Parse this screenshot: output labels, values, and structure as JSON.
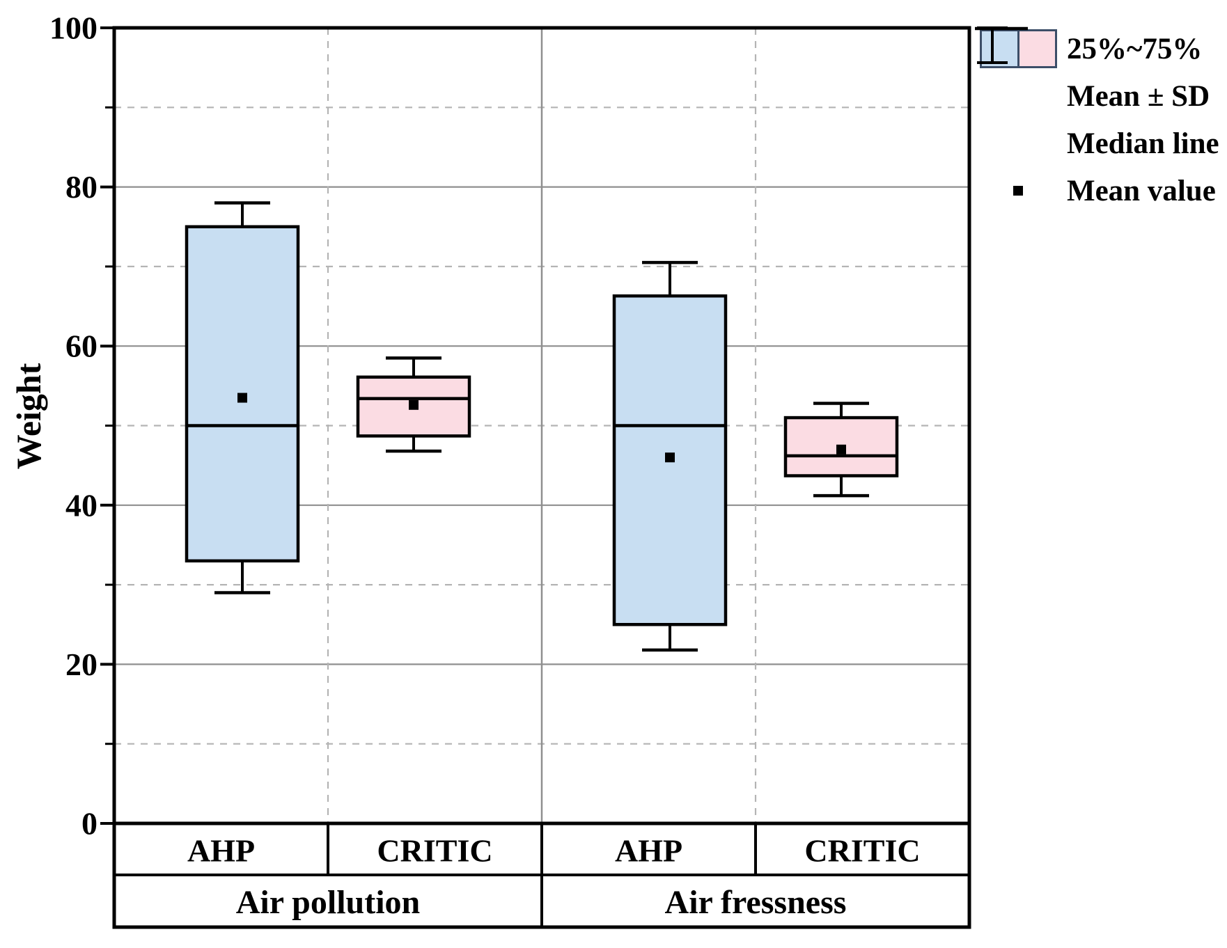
{
  "chart_data": {
    "type": "box",
    "ylabel": "Weight",
    "ylim": [
      0,
      100
    ],
    "ytick_major": [
      0,
      20,
      40,
      60,
      80,
      100
    ],
    "ytick_minor": [
      10,
      30,
      50,
      70,
      90
    ],
    "grid": "major-solid-minor-dashed",
    "legend_position": "top-right-outside",
    "colors": {
      "box_blue": "#c8def2",
      "box_pink": "#fbdce3",
      "swatch_border": "#3c4e68",
      "grid_major": "#8f8f8f",
      "grid_minor": "#b4b4b4",
      "line": "#000000"
    },
    "groups": [
      {
        "label": "Air pollution",
        "methods": [
          "AHP",
          "CRITIC"
        ]
      },
      {
        "label": "Air fressness",
        "methods": [
          "AHP",
          "CRITIC"
        ]
      }
    ],
    "series": [
      {
        "group": "Air pollution",
        "method": "AHP",
        "fill": "blue",
        "whisker_low": 29,
        "q1": 33,
        "median": 50,
        "mean": 53.5,
        "q3": 75,
        "whisker_high": 78
      },
      {
        "group": "Air pollution",
        "method": "CRITIC",
        "fill": "pink",
        "whisker_low": 46.8,
        "q1": 48.7,
        "median": 53.4,
        "mean": 52.6,
        "q3": 56.1,
        "whisker_high": 58.5
      },
      {
        "group": "Air fressness",
        "method": "AHP",
        "fill": "blue",
        "whisker_low": 21.8,
        "q1": 25,
        "median": 50,
        "mean": 46,
        "q3": 66.3,
        "whisker_high": 70.5
      },
      {
        "group": "Air fressness",
        "method": "CRITIC",
        "fill": "pink",
        "whisker_low": 41.2,
        "q1": 43.7,
        "median": 46.2,
        "mean": 47,
        "q3": 51,
        "whisker_high": 52.8
      }
    ],
    "legend": [
      {
        "icon": "box-pair-icon",
        "label": "25%~75%"
      },
      {
        "icon": "error-bar-icon",
        "label": "Mean ± SD"
      },
      {
        "icon": "median-line-icon",
        "label": "Median line"
      },
      {
        "icon": "mean-square-icon",
        "label": "Mean value"
      }
    ]
  }
}
